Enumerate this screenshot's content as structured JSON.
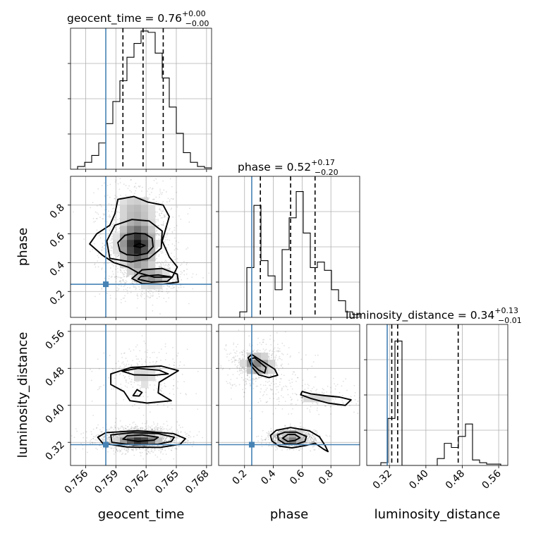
{
  "chart_data": {
    "type": "corner",
    "parameters": [
      "geocent_time",
      "phase",
      "luminosity_distance"
    ],
    "truths": {
      "geocent_time": 0.758,
      "phase": 0.25,
      "luminosity_distance": 0.315
    },
    "colors": {
      "truth": "#4682b4",
      "lines": "#000000",
      "grid": "#b0b0b0"
    },
    "diagonal": [
      {
        "param": "geocent_time",
        "title_main": "geocent_time = 0.76",
        "title_sup": "+0.00",
        "title_sub": "−0.00",
        "xlim": [
          0.7545,
          0.7685
        ],
        "ymax": 1.0,
        "quantiles": [
          0.7597,
          0.7617,
          0.7637
        ],
        "hist_edges": [
          0.7545,
          0.7552,
          0.7559,
          0.7566,
          0.7573,
          0.758,
          0.7587,
          0.7594,
          0.7601,
          0.7608,
          0.7615,
          0.7622,
          0.7629,
          0.7636,
          0.7643,
          0.765,
          0.7657,
          0.7664,
          0.7671,
          0.7678,
          0.7685
        ],
        "hist_values": [
          0.0,
          0.02,
          0.05,
          0.1,
          0.19,
          0.33,
          0.49,
          0.64,
          0.81,
          0.91,
          1.0,
          0.99,
          0.84,
          0.66,
          0.45,
          0.26,
          0.12,
          0.05,
          0.02,
          0.01
        ]
      },
      {
        "param": "phase",
        "title_main": "phase = 0.52",
        "title_sup": "+0.17",
        "title_sub": "−0.20",
        "xlim": [
          0.02,
          1.0
        ],
        "ymax": 1.0,
        "quantiles": [
          0.31,
          0.52,
          0.69
        ],
        "hist_edges": [
          0.02,
          0.069,
          0.118,
          0.167,
          0.216,
          0.265,
          0.314,
          0.363,
          0.412,
          0.461,
          0.51,
          0.559,
          0.608,
          0.657,
          0.706,
          0.755,
          0.804,
          0.853,
          0.902,
          0.951,
          1.0
        ],
        "hist_values": [
          0.0,
          0.0,
          0.0,
          0.04,
          0.36,
          0.81,
          0.41,
          0.3,
          0.2,
          0.49,
          0.72,
          0.91,
          0.61,
          0.36,
          0.4,
          0.34,
          0.2,
          0.12,
          0.04,
          0.02
        ]
      },
      {
        "param": "luminosity_distance",
        "title_main": "luminosity_distance = 0.34",
        "title_sup": "+0.13",
        "title_sub": "−0.01",
        "xlim": [
          0.27,
          0.58
        ],
        "ymax": 1.0,
        "quantiles": [
          0.325,
          0.338,
          0.471
        ],
        "hist_edges": [
          0.27,
          0.2855,
          0.301,
          0.3165,
          0.332,
          0.3475,
          0.363,
          0.3785,
          0.394,
          0.4095,
          0.425,
          0.4405,
          0.456,
          0.4715,
          0.487,
          0.5025,
          0.518,
          0.5335,
          0.549,
          0.5645,
          0.58
        ],
        "hist_values": [
          0.0,
          0.0,
          0.02,
          0.34,
          0.9,
          0.0,
          0.0,
          0.0,
          0.0,
          0.0,
          0.05,
          0.16,
          0.13,
          0.21,
          0.3,
          0.04,
          0.02,
          0.01,
          0.01,
          0.0
        ]
      }
    ],
    "pairs": [
      {
        "x": "geocent_time",
        "y": "phase",
        "blobs": [
          {
            "cx": 0.7611,
            "cy": 0.525,
            "sx": 0.00105,
            "sy": 0.1,
            "w": 1.0
          },
          {
            "cx": 0.7626,
            "cy": 0.3,
            "sx": 0.0011,
            "sy": 0.04,
            "w": 0.45
          },
          {
            "cx": 0.761,
            "cy": 0.78,
            "sx": 0.0013,
            "sy": 0.07,
            "w": 0.25
          }
        ],
        "contours": [
          [
            [
              0.7594,
              0.48
            ],
            [
              0.7601,
              0.455
            ],
            [
              0.7611,
              0.45
            ],
            [
              0.7621,
              0.465
            ],
            [
              0.7627,
              0.51
            ],
            [
              0.7626,
              0.57
            ],
            [
              0.7619,
              0.6
            ],
            [
              0.7609,
              0.605
            ],
            [
              0.7599,
              0.59
            ],
            [
              0.7592,
              0.54
            ]
          ],
          [
            [
              0.7584,
              0.43
            ],
            [
              0.7605,
              0.405
            ],
            [
              0.7623,
              0.43
            ],
            [
              0.7635,
              0.5
            ],
            [
              0.7636,
              0.62
            ],
            [
              0.7623,
              0.69
            ],
            [
              0.7606,
              0.7
            ],
            [
              0.7589,
              0.66
            ],
            [
              0.7581,
              0.55
            ]
          ],
          [
            [
              0.7577,
              0.45
            ],
            [
              0.7588,
              0.4
            ],
            [
              0.7602,
              0.37
            ],
            [
              0.7612,
              0.33
            ],
            [
              0.7628,
              0.3
            ],
            [
              0.7646,
              0.3
            ],
            [
              0.7651,
              0.37
            ],
            [
              0.7643,
              0.44
            ],
            [
              0.7636,
              0.55
            ],
            [
              0.7643,
              0.72
            ],
            [
              0.7637,
              0.8
            ],
            [
              0.7622,
              0.82
            ],
            [
              0.7608,
              0.86
            ],
            [
              0.7592,
              0.84
            ],
            [
              0.7589,
              0.74
            ],
            [
              0.7584,
              0.66
            ],
            [
              0.7571,
              0.6
            ],
            [
              0.7564,
              0.53
            ]
          ],
          [
            [
              0.7612,
              0.285
            ],
            [
              0.7625,
              0.265
            ],
            [
              0.7641,
              0.27
            ],
            [
              0.7646,
              0.3
            ],
            [
              0.7632,
              0.315
            ],
            [
              0.7615,
              0.305
            ]
          ],
          [
            [
              0.7606,
              0.29
            ],
            [
              0.7616,
              0.255
            ],
            [
              0.7636,
              0.25
            ],
            [
              0.7652,
              0.265
            ],
            [
              0.7651,
              0.32
            ],
            [
              0.7636,
              0.36
            ],
            [
              0.7616,
              0.35
            ]
          ],
          [
            [
              0.7608,
              0.515
            ],
            [
              0.7614,
              0.505
            ],
            [
              0.7619,
              0.52
            ],
            [
              0.7613,
              0.533
            ]
          ]
        ],
        "xlim": [
          0.7545,
          0.7685
        ],
        "ylim": [
          0.02,
          1.0
        ]
      },
      {
        "x": "geocent_time",
        "y": "luminosity_distance",
        "blobs": [
          {
            "cx": 0.7613,
            "cy": 0.328,
            "sx": 0.0013,
            "sy": 0.008,
            "w": 1.0
          },
          {
            "cx": 0.7617,
            "cy": 0.465,
            "sx": 0.0013,
            "sy": 0.022,
            "w": 0.18
          }
        ],
        "contours": [
          [
            [
              0.7597,
              0.327
            ],
            [
              0.7612,
              0.322
            ],
            [
              0.7628,
              0.325
            ],
            [
              0.7632,
              0.331
            ],
            [
              0.7616,
              0.336
            ],
            [
              0.7601,
              0.334
            ]
          ],
          [
            [
              0.7586,
              0.32
            ],
            [
              0.7608,
              0.314
            ],
            [
              0.7632,
              0.316
            ],
            [
              0.7645,
              0.322
            ],
            [
              0.7648,
              0.331
            ],
            [
              0.7632,
              0.339
            ],
            [
              0.7607,
              0.341
            ],
            [
              0.7585,
              0.336
            ]
          ],
          [
            [
              0.7577,
              0.318
            ],
            [
              0.7601,
              0.31
            ],
            [
              0.7634,
              0.309
            ],
            [
              0.7654,
              0.316
            ],
            [
              0.7659,
              0.328
            ],
            [
              0.7647,
              0.339
            ],
            [
              0.7611,
              0.345
            ],
            [
              0.758,
              0.341
            ],
            [
              0.7572,
              0.331
            ]
          ],
          [
            [
              0.7596,
              0.474
            ],
            [
              0.7612,
              0.48
            ],
            [
              0.7633,
              0.476
            ],
            [
              0.7642,
              0.468
            ],
            [
              0.7628,
              0.465
            ],
            [
              0.7608,
              0.466
            ]
          ],
          [
            [
              0.7585,
              0.468
            ],
            [
              0.7605,
              0.482
            ],
            [
              0.7635,
              0.485
            ],
            [
              0.7652,
              0.475
            ],
            [
              0.7633,
              0.45
            ],
            [
              0.7632,
              0.427
            ],
            [
              0.7645,
              0.41
            ],
            [
              0.7621,
              0.405
            ],
            [
              0.7604,
              0.41
            ],
            [
              0.7598,
              0.43
            ],
            [
              0.7585,
              0.445
            ]
          ],
          [
            [
              0.7607,
              0.421
            ],
            [
              0.7613,
              0.42
            ],
            [
              0.7616,
              0.428
            ],
            [
              0.7611,
              0.434
            ]
          ]
        ],
        "xlim": [
          0.7545,
          0.7685
        ],
        "ylim": [
          0.27,
          0.575
        ]
      },
      {
        "x": "phase",
        "y": "luminosity_distance",
        "blobs": [
          {
            "cx": 0.53,
            "cy": 0.33,
            "sx": 0.05,
            "sy": 0.006,
            "w": 1.0
          },
          {
            "cx": 0.27,
            "cy": 0.49,
            "sx": 0.05,
            "sy": 0.012,
            "w": 0.35
          },
          {
            "cx": 0.7,
            "cy": 0.418,
            "sx": 0.13,
            "sy": 0.012,
            "w": 0.18
          },
          {
            "cx": 0.33,
            "cy": 0.485,
            "sx": 0.08,
            "sy": 0.02,
            "w": 0.22
          }
        ],
        "contours": [
          [
            [
              0.465,
              0.329
            ],
            [
              0.5,
              0.322
            ],
            [
              0.55,
              0.324
            ],
            [
              0.585,
              0.33
            ],
            [
              0.55,
              0.337
            ],
            [
              0.5,
              0.337
            ]
          ],
          [
            [
              0.435,
              0.326
            ],
            [
              0.48,
              0.317
            ],
            [
              0.56,
              0.316
            ],
            [
              0.62,
              0.322
            ],
            [
              0.63,
              0.333
            ],
            [
              0.56,
              0.342
            ],
            [
              0.48,
              0.342
            ],
            [
              0.43,
              0.336
            ]
          ],
          [
            [
              0.39,
              0.323
            ],
            [
              0.44,
              0.312
            ],
            [
              0.53,
              0.308
            ],
            [
              0.62,
              0.313
            ],
            [
              0.69,
              0.318
            ],
            [
              0.75,
              0.305
            ],
            [
              0.78,
              0.3
            ],
            [
              0.76,
              0.313
            ],
            [
              0.72,
              0.332
            ],
            [
              0.65,
              0.345
            ],
            [
              0.52,
              0.352
            ],
            [
              0.42,
              0.346
            ],
            [
              0.38,
              0.335
            ]
          ],
          [
            [
              0.24,
              0.5
            ],
            [
              0.26,
              0.487
            ],
            [
              0.3,
              0.476
            ],
            [
              0.34,
              0.47
            ],
            [
              0.35,
              0.482
            ],
            [
              0.31,
              0.492
            ],
            [
              0.27,
              0.503
            ]
          ],
          [
            [
              0.225,
              0.503
            ],
            [
              0.25,
              0.484
            ],
            [
              0.3,
              0.466
            ],
            [
              0.37,
              0.46
            ],
            [
              0.43,
              0.465
            ],
            [
              0.41,
              0.478
            ],
            [
              0.35,
              0.49
            ],
            [
              0.3,
              0.5
            ],
            [
              0.25,
              0.51
            ]
          ],
          [
            [
              0.6,
              0.43
            ],
            [
              0.66,
              0.425
            ],
            [
              0.76,
              0.421
            ],
            [
              0.86,
              0.418
            ],
            [
              0.94,
              0.412
            ],
            [
              0.9,
              0.4
            ],
            [
              0.78,
              0.405
            ],
            [
              0.66,
              0.415
            ],
            [
              0.59,
              0.423
            ]
          ]
        ],
        "xlim": [
          0.02,
          1.0
        ],
        "ylim": [
          0.27,
          0.575
        ]
      }
    ],
    "axes": {
      "geocent_time": {
        "label": "geocent_time",
        "ticks": [
          0.756,
          0.759,
          0.762,
          0.765,
          0.768
        ],
        "tick_labels": [
          "0.756",
          "0.759",
          "0.762",
          "0.765",
          "0.768"
        ]
      },
      "phase_x": {
        "label": "phase",
        "ticks": [
          0.2,
          0.4,
          0.6,
          0.8
        ],
        "tick_labels": [
          "0.2",
          "0.4",
          "0.6",
          "0.8"
        ]
      },
      "phase_y": {
        "label": "phase",
        "ticks": [
          0.2,
          0.4,
          0.6,
          0.8
        ],
        "tick_labels": [
          "0.2",
          "0.4",
          "0.6",
          "0.8"
        ]
      },
      "luminosity_distance_x": {
        "label": "luminosity_distance",
        "ticks": [
          0.32,
          0.4,
          0.48,
          0.56
        ],
        "tick_labels": [
          "0.32",
          "0.40",
          "0.48",
          "0.56"
        ]
      },
      "luminosity_distance_y": {
        "label": "luminosity_distance",
        "ticks": [
          0.32,
          0.4,
          0.48,
          0.56
        ],
        "tick_labels": [
          "0.32",
          "0.40",
          "0.48",
          "0.56"
        ]
      }
    },
    "grid": true
  }
}
